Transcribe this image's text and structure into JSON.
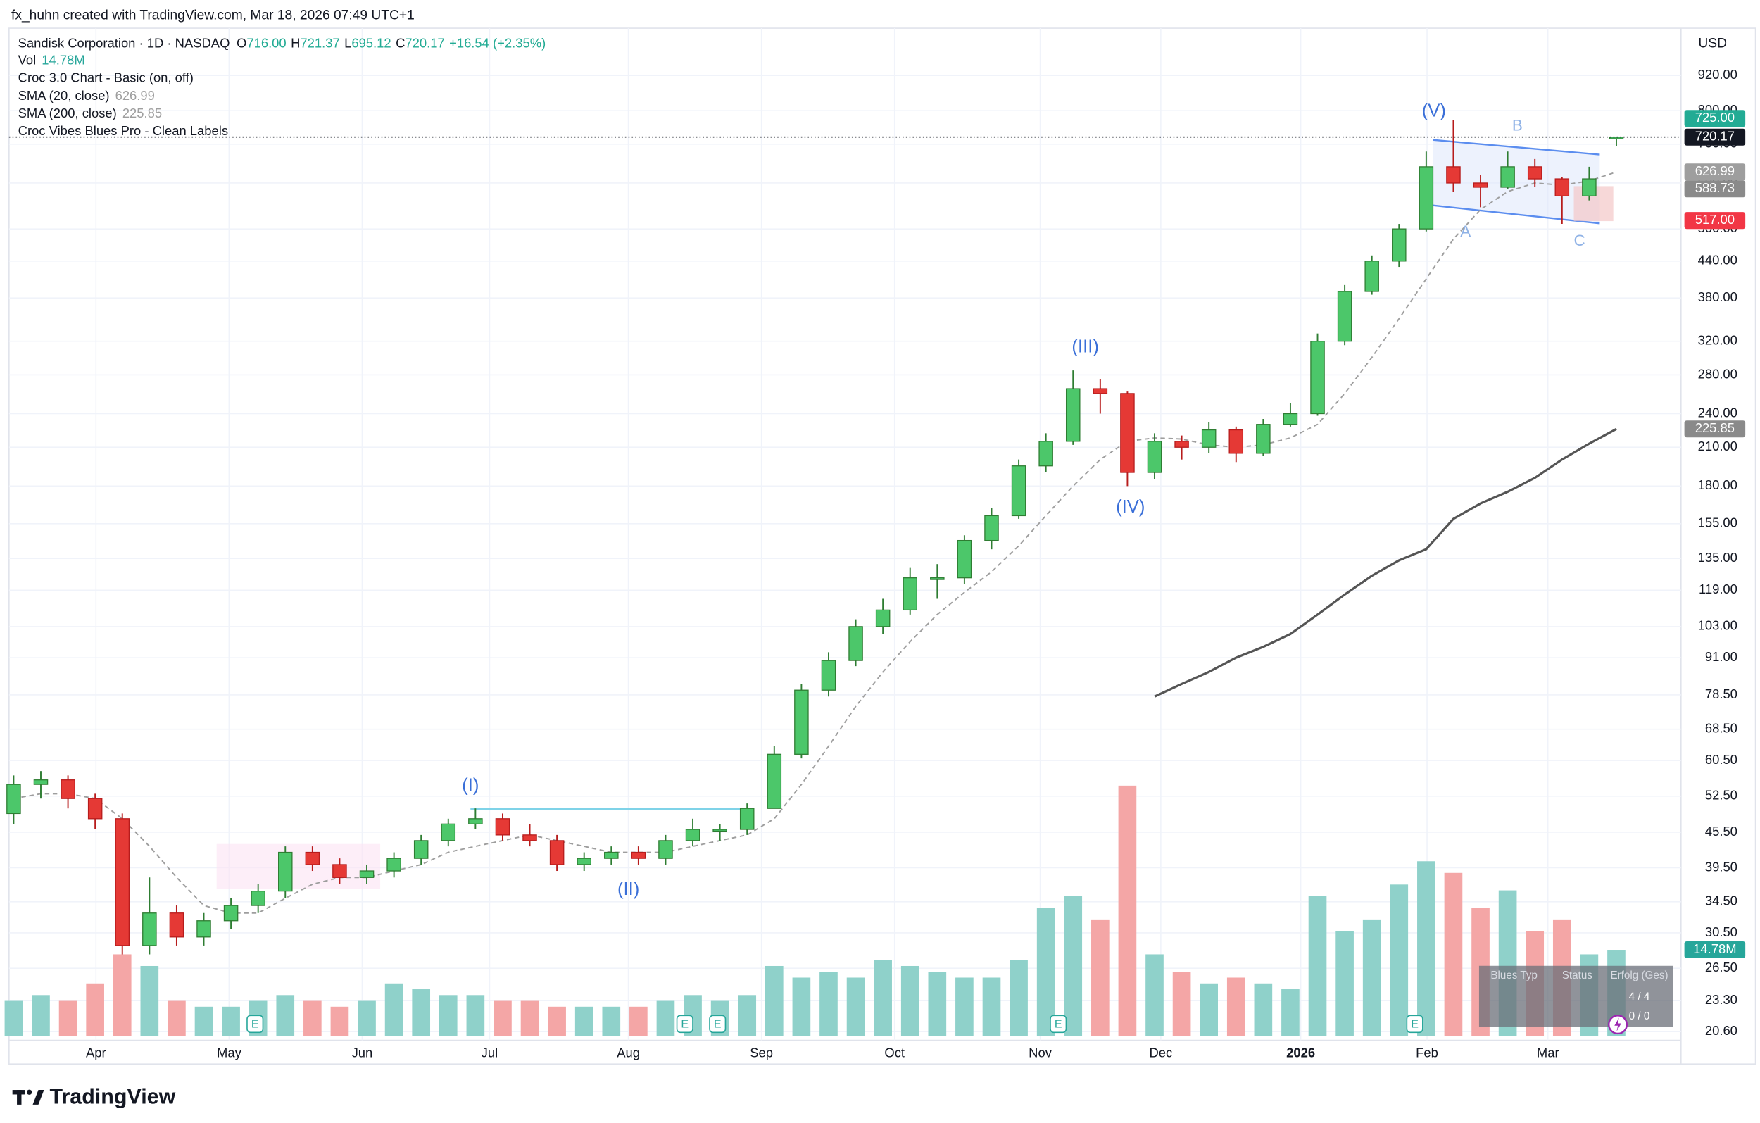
{
  "header": {
    "credit": "fx_huhn created with TradingView.com, Mar 18, 2026 07:49 UTC+1",
    "currency": "USD"
  },
  "legend": {
    "symbol": "Sandisk Corporation · 1D · NASDAQ",
    "ohlc": [
      [
        "O",
        "716.00"
      ],
      [
        "H",
        "721.37"
      ],
      [
        "L",
        "695.12"
      ],
      [
        "C",
        "720.17"
      ]
    ],
    "change": "+16.54 (+2.35%)",
    "indicators": [
      {
        "name": "Vol",
        "value": "14.78M"
      },
      {
        "name": "Croc 3.0 Chart - Basic (on, off)"
      },
      {
        "name": "SMA (20, close)",
        "value": "626.99"
      },
      {
        "name": "SMA (200, close)",
        "value": "225.85"
      },
      {
        "name": "Croc Vibes Blues Pro - Clean Labels"
      }
    ]
  },
  "chart_data": {
    "type": "candlestick",
    "log_scale": true,
    "grid": true,
    "up_color": "#4cc76a",
    "down_color": "#e53935",
    "xlim": [
      -0.17,
      61.38
    ],
    "xticks": [
      {
        "value": 3.03,
        "label": "Apr"
      },
      {
        "value": 7.93,
        "label": "May"
      },
      {
        "value": 12.83,
        "label": "Jun"
      },
      {
        "value": 17.52,
        "label": "Jul"
      },
      {
        "value": 22.63,
        "label": "Aug"
      },
      {
        "value": 27.53,
        "label": "Sep"
      },
      {
        "value": 32.43,
        "label": "Oct"
      },
      {
        "value": 37.79,
        "label": "Nov"
      },
      {
        "value": 42.23,
        "label": "Dec"
      },
      {
        "value": 47.38,
        "label": "2026"
      },
      {
        "value": 52.03,
        "label": "Feb"
      },
      {
        "value": 56.48,
        "label": "Mar"
      }
    ],
    "ylim": [
      19.9,
      1110
    ],
    "yticks": [
      {
        "value": 920,
        "label": "920.00"
      },
      {
        "value": 800,
        "label": "800.00"
      },
      {
        "value": 700,
        "label": "700.00"
      },
      {
        "value": 600,
        "label": "600.00"
      },
      {
        "value": 500,
        "label": "500.00"
      },
      {
        "value": 440,
        "label": "440.00"
      },
      {
        "value": 380,
        "label": "380.00"
      },
      {
        "value": 320,
        "label": "320.00"
      },
      {
        "value": 280,
        "label": "280.00"
      },
      {
        "value": 240,
        "label": "240.00"
      },
      {
        "value": 210,
        "label": "210.00"
      },
      {
        "value": 180,
        "label": "180.00"
      },
      {
        "value": 155,
        "label": "155.00"
      },
      {
        "value": 135,
        "label": "135.00"
      },
      {
        "value": 119,
        "label": "119.00"
      },
      {
        "value": 103,
        "label": "103.00"
      },
      {
        "value": 91,
        "label": "91.00"
      },
      {
        "value": 78.5,
        "label": "78.50"
      },
      {
        "value": 68.5,
        "label": "68.50"
      },
      {
        "value": 60.5,
        "label": "60.50"
      },
      {
        "value": 52.5,
        "label": "52.50"
      },
      {
        "value": 45.5,
        "label": "45.50"
      },
      {
        "value": 39.5,
        "label": "39.50"
      },
      {
        "value": 34.5,
        "label": "34.50"
      },
      {
        "value": 30.5,
        "label": "30.50"
      },
      {
        "value": 26.5,
        "label": "26.50"
      },
      {
        "value": 23.3,
        "label": "23.30"
      },
      {
        "value": 20.6,
        "label": "20.60"
      }
    ],
    "candles": [
      [
        49,
        57,
        47,
        55
      ],
      [
        55,
        58,
        52,
        56
      ],
      [
        56,
        57,
        50,
        52
      ],
      [
        52,
        53,
        46,
        48
      ],
      [
        48,
        49,
        28,
        29
      ],
      [
        29,
        38,
        28,
        33
      ],
      [
        33,
        34,
        29,
        30
      ],
      [
        30,
        33,
        29,
        32
      ],
      [
        32,
        35,
        31,
        34
      ],
      [
        34,
        37,
        33,
        36
      ],
      [
        36,
        43,
        35,
        42
      ],
      [
        42,
        43,
        39,
        40
      ],
      [
        40,
        41,
        37,
        38
      ],
      [
        38,
        40,
        37,
        39
      ],
      [
        39,
        42,
        38,
        41
      ],
      [
        41,
        45,
        40,
        44
      ],
      [
        44,
        48,
        43,
        47
      ],
      [
        47,
        50,
        46,
        48
      ],
      [
        48,
        49,
        44,
        45
      ],
      [
        45,
        47,
        43,
        44
      ],
      [
        44,
        45,
        39,
        40
      ],
      [
        40,
        42,
        39,
        41
      ],
      [
        41,
        43,
        40,
        42
      ],
      [
        42,
        43,
        40,
        41
      ],
      [
        41,
        45,
        40,
        44
      ],
      [
        44,
        48,
        43,
        46
      ],
      [
        46,
        47,
        44,
        46
      ],
      [
        46,
        51,
        45,
        50
      ],
      [
        50,
        64,
        50,
        62
      ],
      [
        62,
        82,
        61,
        80
      ],
      [
        80,
        93,
        78,
        90
      ],
      [
        90,
        106,
        88,
        103
      ],
      [
        103,
        115,
        100,
        110
      ],
      [
        110,
        130,
        108,
        125
      ],
      [
        125,
        132,
        115,
        125
      ],
      [
        125,
        148,
        122,
        145
      ],
      [
        145,
        165,
        140,
        160
      ],
      [
        160,
        200,
        158,
        195
      ],
      [
        195,
        222,
        190,
        215
      ],
      [
        215,
        285,
        212,
        265
      ],
      [
        265,
        275,
        240,
        260
      ],
      [
        260,
        262,
        180,
        190
      ],
      [
        190,
        222,
        185,
        215
      ],
      [
        215,
        220,
        200,
        210
      ],
      [
        210,
        232,
        205,
        225
      ],
      [
        225,
        228,
        198,
        205
      ],
      [
        205,
        235,
        203,
        230
      ],
      [
        230,
        250,
        228,
        240
      ],
      [
        240,
        330,
        238,
        320
      ],
      [
        320,
        400,
        315,
        390
      ],
      [
        390,
        450,
        385,
        440
      ],
      [
        440,
        510,
        430,
        500
      ],
      [
        500,
        680,
        495,
        640
      ],
      [
        640,
        770,
        580,
        600
      ],
      [
        600,
        620,
        545,
        590
      ],
      [
        590,
        680,
        585,
        640
      ],
      [
        640,
        660,
        590,
        610
      ],
      [
        610,
        615,
        510,
        570
      ],
      [
        570,
        640,
        560,
        610
      ],
      [
        716,
        721.37,
        695.12,
        720.17
      ]
    ],
    "series": [
      {
        "name": "SMA (20, close)",
        "color": "#9e9e9e",
        "dashed": true,
        "values": [
          52,
          53,
          53,
          52,
          48,
          43,
          38,
          34,
          33,
          33,
          35,
          37,
          38,
          38,
          39,
          40,
          42,
          43,
          44,
          45,
          44,
          43,
          42,
          42,
          42,
          43,
          44,
          45,
          48,
          55,
          64,
          75,
          86,
          97,
          108,
          118,
          128,
          142,
          160,
          180,
          200,
          215,
          218,
          217,
          212,
          210,
          212,
          218,
          230,
          260,
          300,
          350,
          410,
          480,
          540,
          580,
          600,
          595,
          605,
          626.99
        ]
      },
      {
        "name": "SMA (200, close)",
        "color": "#555555",
        "dashed": false,
        "values": [
          null,
          null,
          null,
          null,
          null,
          null,
          null,
          null,
          null,
          null,
          null,
          null,
          null,
          null,
          null,
          null,
          null,
          null,
          null,
          null,
          null,
          null,
          null,
          null,
          null,
          null,
          null,
          null,
          null,
          null,
          null,
          null,
          null,
          null,
          null,
          null,
          null,
          null,
          null,
          null,
          null,
          null,
          78,
          82,
          86,
          91,
          95,
          100,
          108,
          117,
          126,
          134,
          140,
          158,
          168,
          176,
          186,
          200,
          213,
          225.85
        ]
      }
    ],
    "volume": {
      "ylim": [
        0,
        45
      ],
      "up_color": "#8fd1ca",
      "down_color": "#f4a6a6",
      "values": [
        6,
        7,
        6,
        9,
        14,
        12,
        6,
        5,
        5,
        6,
        7,
        6,
        5,
        6,
        9,
        8,
        7,
        7,
        6,
        6,
        5,
        5,
        5,
        5,
        6,
        7,
        6,
        7,
        12,
        10,
        11,
        10,
        13,
        12,
        11,
        10,
        10,
        13,
        22,
        24,
        20,
        43,
        14,
        11,
        9,
        10,
        9,
        8,
        24,
        18,
        20,
        26,
        30,
        28,
        22,
        25,
        18,
        20,
        14,
        14.78
      ]
    },
    "last_price": 720.17,
    "price_labels": [
      {
        "value": 725,
        "label": "725.00",
        "color": "#22ab94"
      },
      {
        "value": 720.17,
        "label": "720.17",
        "color": "#131722"
      },
      {
        "value": 626.99,
        "label": "626.99",
        "color": "#9e9e9e"
      },
      {
        "value": 588.73,
        "label": "588.73",
        "color": "#8a8a8a"
      },
      {
        "value": 517,
        "label": "517.00",
        "color": "#f23645"
      },
      {
        "value": 225.85,
        "label": "225.85",
        "color": "#8a8a8a"
      }
    ],
    "volume_label": {
      "value": 14.78,
      "label": "14.78M",
      "color": "#26a69a"
    },
    "waves": [
      "(I)",
      "(II)",
      "(III)",
      "(IV)",
      "(V)",
      "A",
      "B",
      "C"
    ],
    "earnings_label": "E"
  },
  "signal_table": {
    "headers": [
      "Blues Typ",
      "Status",
      "Erfolg (Ges)"
    ],
    "rows": [
      "4 / 4",
      "0 / 0"
    ]
  },
  "footer": {
    "brand": "TradingView"
  }
}
